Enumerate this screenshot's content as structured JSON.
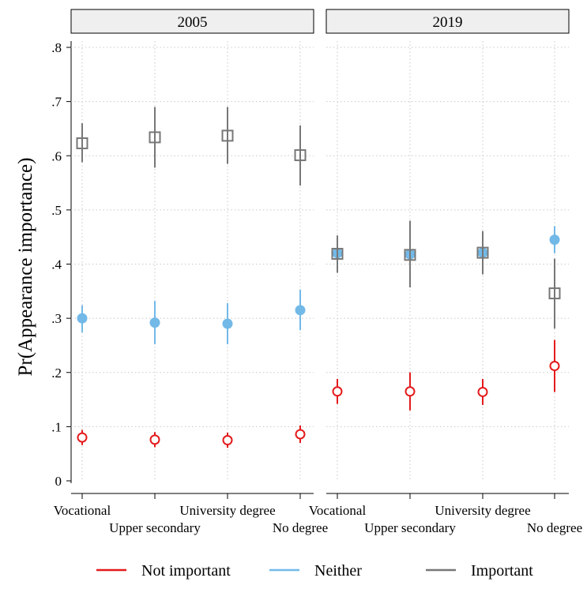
{
  "chart_data": {
    "type": "scatter",
    "ylabel": "Pr(Appearance importance)",
    "xlabel": "",
    "ylim": [
      0,
      0.8
    ],
    "yticks": [
      {
        "value": 0.0,
        "label": "0"
      },
      {
        "value": 0.1,
        "label": ".1"
      },
      {
        "value": 0.2,
        "label": ".2"
      },
      {
        "value": 0.3,
        "label": ".3"
      },
      {
        "value": 0.4,
        "label": ".4"
      },
      {
        "value": 0.5,
        "label": ".5"
      },
      {
        "value": 0.6,
        "label": ".6"
      },
      {
        "value": 0.7,
        "label": ".7"
      },
      {
        "value": 0.8,
        "label": ".8"
      }
    ],
    "grid": true,
    "legend_position": "bottom",
    "categories": [
      "Vocational",
      "Upper secondary",
      "University degree",
      "No degree"
    ],
    "panels": [
      {
        "title": "2005",
        "series": [
          {
            "name": "Not important",
            "color": "#e41a1c",
            "marker": "hollow-circle",
            "values": [
              0.08,
              0.076,
              0.075,
              0.086
            ],
            "ci_low": [
              0.066,
              0.062,
              0.061,
              0.07
            ],
            "ci_high": [
              0.094,
              0.09,
              0.089,
              0.102
            ]
          },
          {
            "name": "Neither",
            "color": "#72b9e8",
            "marker": "filled-circle",
            "values": [
              0.3,
              0.292,
              0.29,
              0.315
            ],
            "ci_low": [
              0.274,
              0.252,
              0.252,
              0.278
            ],
            "ci_high": [
              0.324,
              0.332,
              0.328,
              0.353
            ]
          },
          {
            "name": "Important",
            "color": "#777777",
            "marker": "hollow-square",
            "values": [
              0.623,
              0.634,
              0.637,
              0.601
            ],
            "ci_low": [
              0.588,
              0.578,
              0.585,
              0.545
            ],
            "ci_high": [
              0.66,
              0.69,
              0.69,
              0.656
            ]
          }
        ]
      },
      {
        "title": "2019",
        "series": [
          {
            "name": "Not important",
            "color": "#e41a1c",
            "marker": "hollow-circle",
            "values": [
              0.165,
              0.165,
              0.164,
              0.212
            ],
            "ci_low": [
              0.142,
              0.13,
              0.14,
              0.164
            ],
            "ci_high": [
              0.188,
              0.2,
              0.188,
              0.26
            ]
          },
          {
            "name": "Neither",
            "color": "#72b9e8",
            "marker": "filled-circle",
            "values": [
              0.42,
              0.418,
              0.421,
              0.445
            ],
            "ci_low": [
              0.398,
              0.392,
              0.398,
              0.42
            ],
            "ci_high": [
              0.442,
              0.444,
              0.444,
              0.47
            ]
          },
          {
            "name": "Important",
            "color": "#777777",
            "marker": "hollow-square",
            "values": [
              0.419,
              0.417,
              0.421,
              0.346
            ],
            "ci_low": [
              0.384,
              0.357,
              0.381,
              0.281
            ],
            "ci_high": [
              0.453,
              0.48,
              0.461,
              0.41
            ]
          }
        ]
      }
    ]
  }
}
